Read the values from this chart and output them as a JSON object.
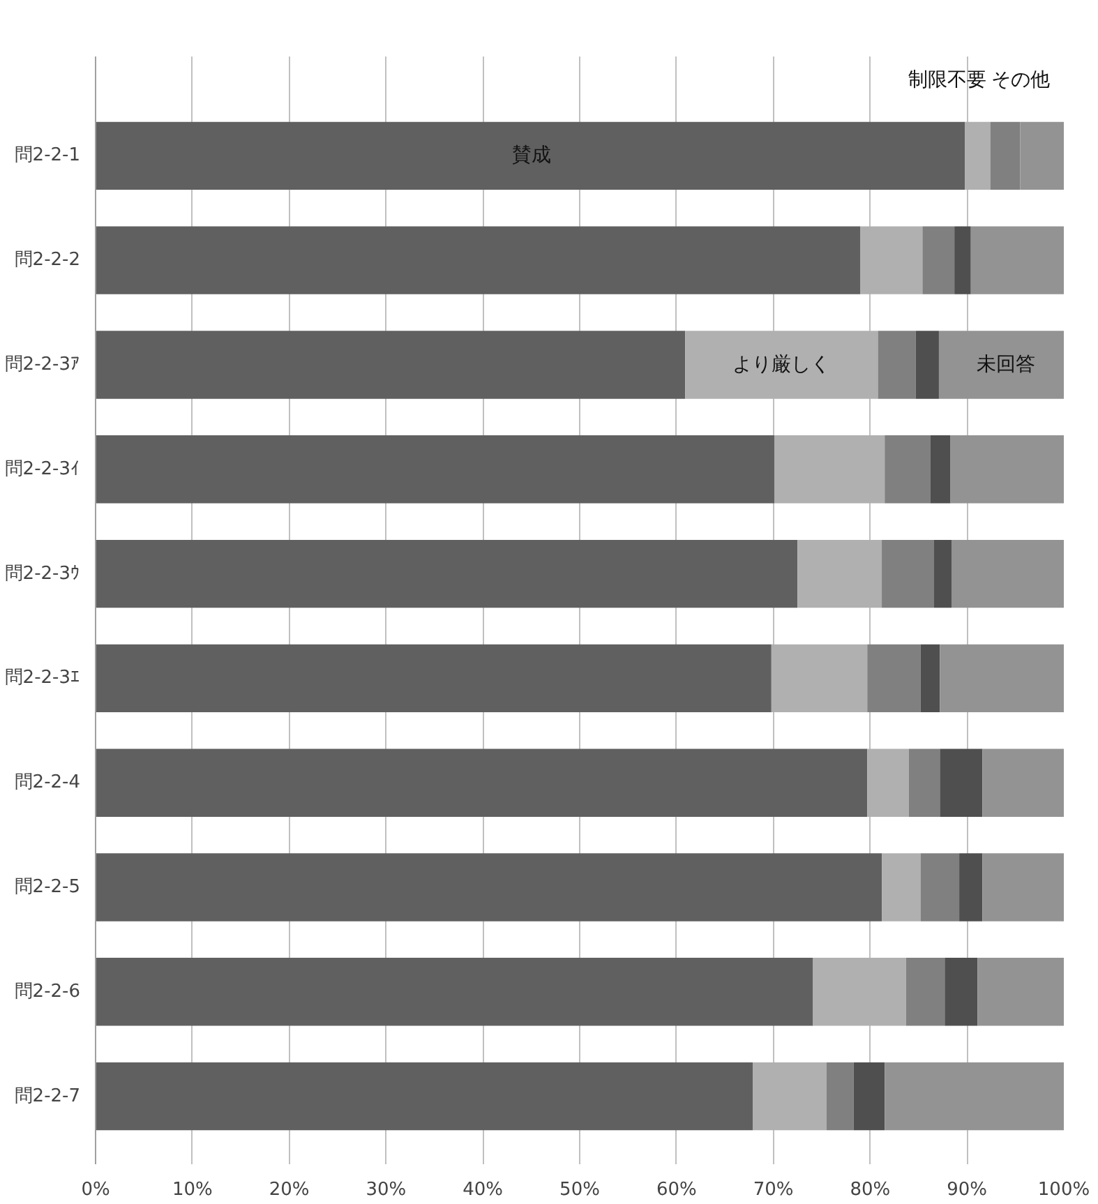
{
  "chart_data": {
    "type": "bar",
    "orientation": "horizontal",
    "stacked": true,
    "categories": [
      "問2-2-1",
      "問2-2-2",
      "問2-2-3ｱ",
      "問2-2-3ｲ",
      "問2-2-3ｳ",
      "問2-2-3ｴ",
      "問2-2-4",
      "問2-2-5",
      "問2-2-6",
      "問2-2-7"
    ],
    "series": [
      {
        "color": "#606060",
        "values": [
          89.8,
          79.0,
          60.9,
          70.1,
          72.5,
          69.8,
          79.7,
          81.2,
          74.1,
          67.9
        ]
      },
      {
        "color": "#b0b0b0",
        "values": [
          2.6,
          6.4,
          19.9,
          11.4,
          8.7,
          9.9,
          4.3,
          4.0,
          9.6,
          7.6
        ]
      },
      {
        "color": "#808080",
        "values": [
          3.1,
          3.3,
          3.9,
          4.7,
          5.4,
          5.5,
          3.2,
          4.0,
          4.0,
          2.8
        ]
      },
      {
        "color": "#4f4f4f",
        "values": [
          0,
          1.7,
          2.4,
          2.1,
          1.8,
          2.0,
          4.4,
          2.4,
          3.4,
          3.2
        ]
      },
      {
        "color": "#939393",
        "values": [
          4.5,
          9.6,
          12.9,
          11.7,
          11.6,
          12.8,
          8.4,
          8.4,
          8.9,
          18.5
        ]
      }
    ],
    "xlim": [
      0,
      100
    ],
    "xticks": [
      {
        "value": 0,
        "label": "0%"
      },
      {
        "value": 10,
        "label": "10%"
      },
      {
        "value": 20,
        "label": "20%"
      },
      {
        "value": 30,
        "label": "30%"
      },
      {
        "value": 40,
        "label": "40%"
      },
      {
        "value": 50,
        "label": "50%"
      },
      {
        "value": 60,
        "label": "60%"
      },
      {
        "value": 70,
        "label": "70%"
      },
      {
        "value": 80,
        "label": "80%"
      },
      {
        "value": 90,
        "label": "90%"
      },
      {
        "value": 100,
        "label": "100%"
      }
    ],
    "grid": "x",
    "annotations": [
      "賛成",
      "制限不要",
      "その他",
      "より厳しく",
      "未回答"
    ]
  }
}
